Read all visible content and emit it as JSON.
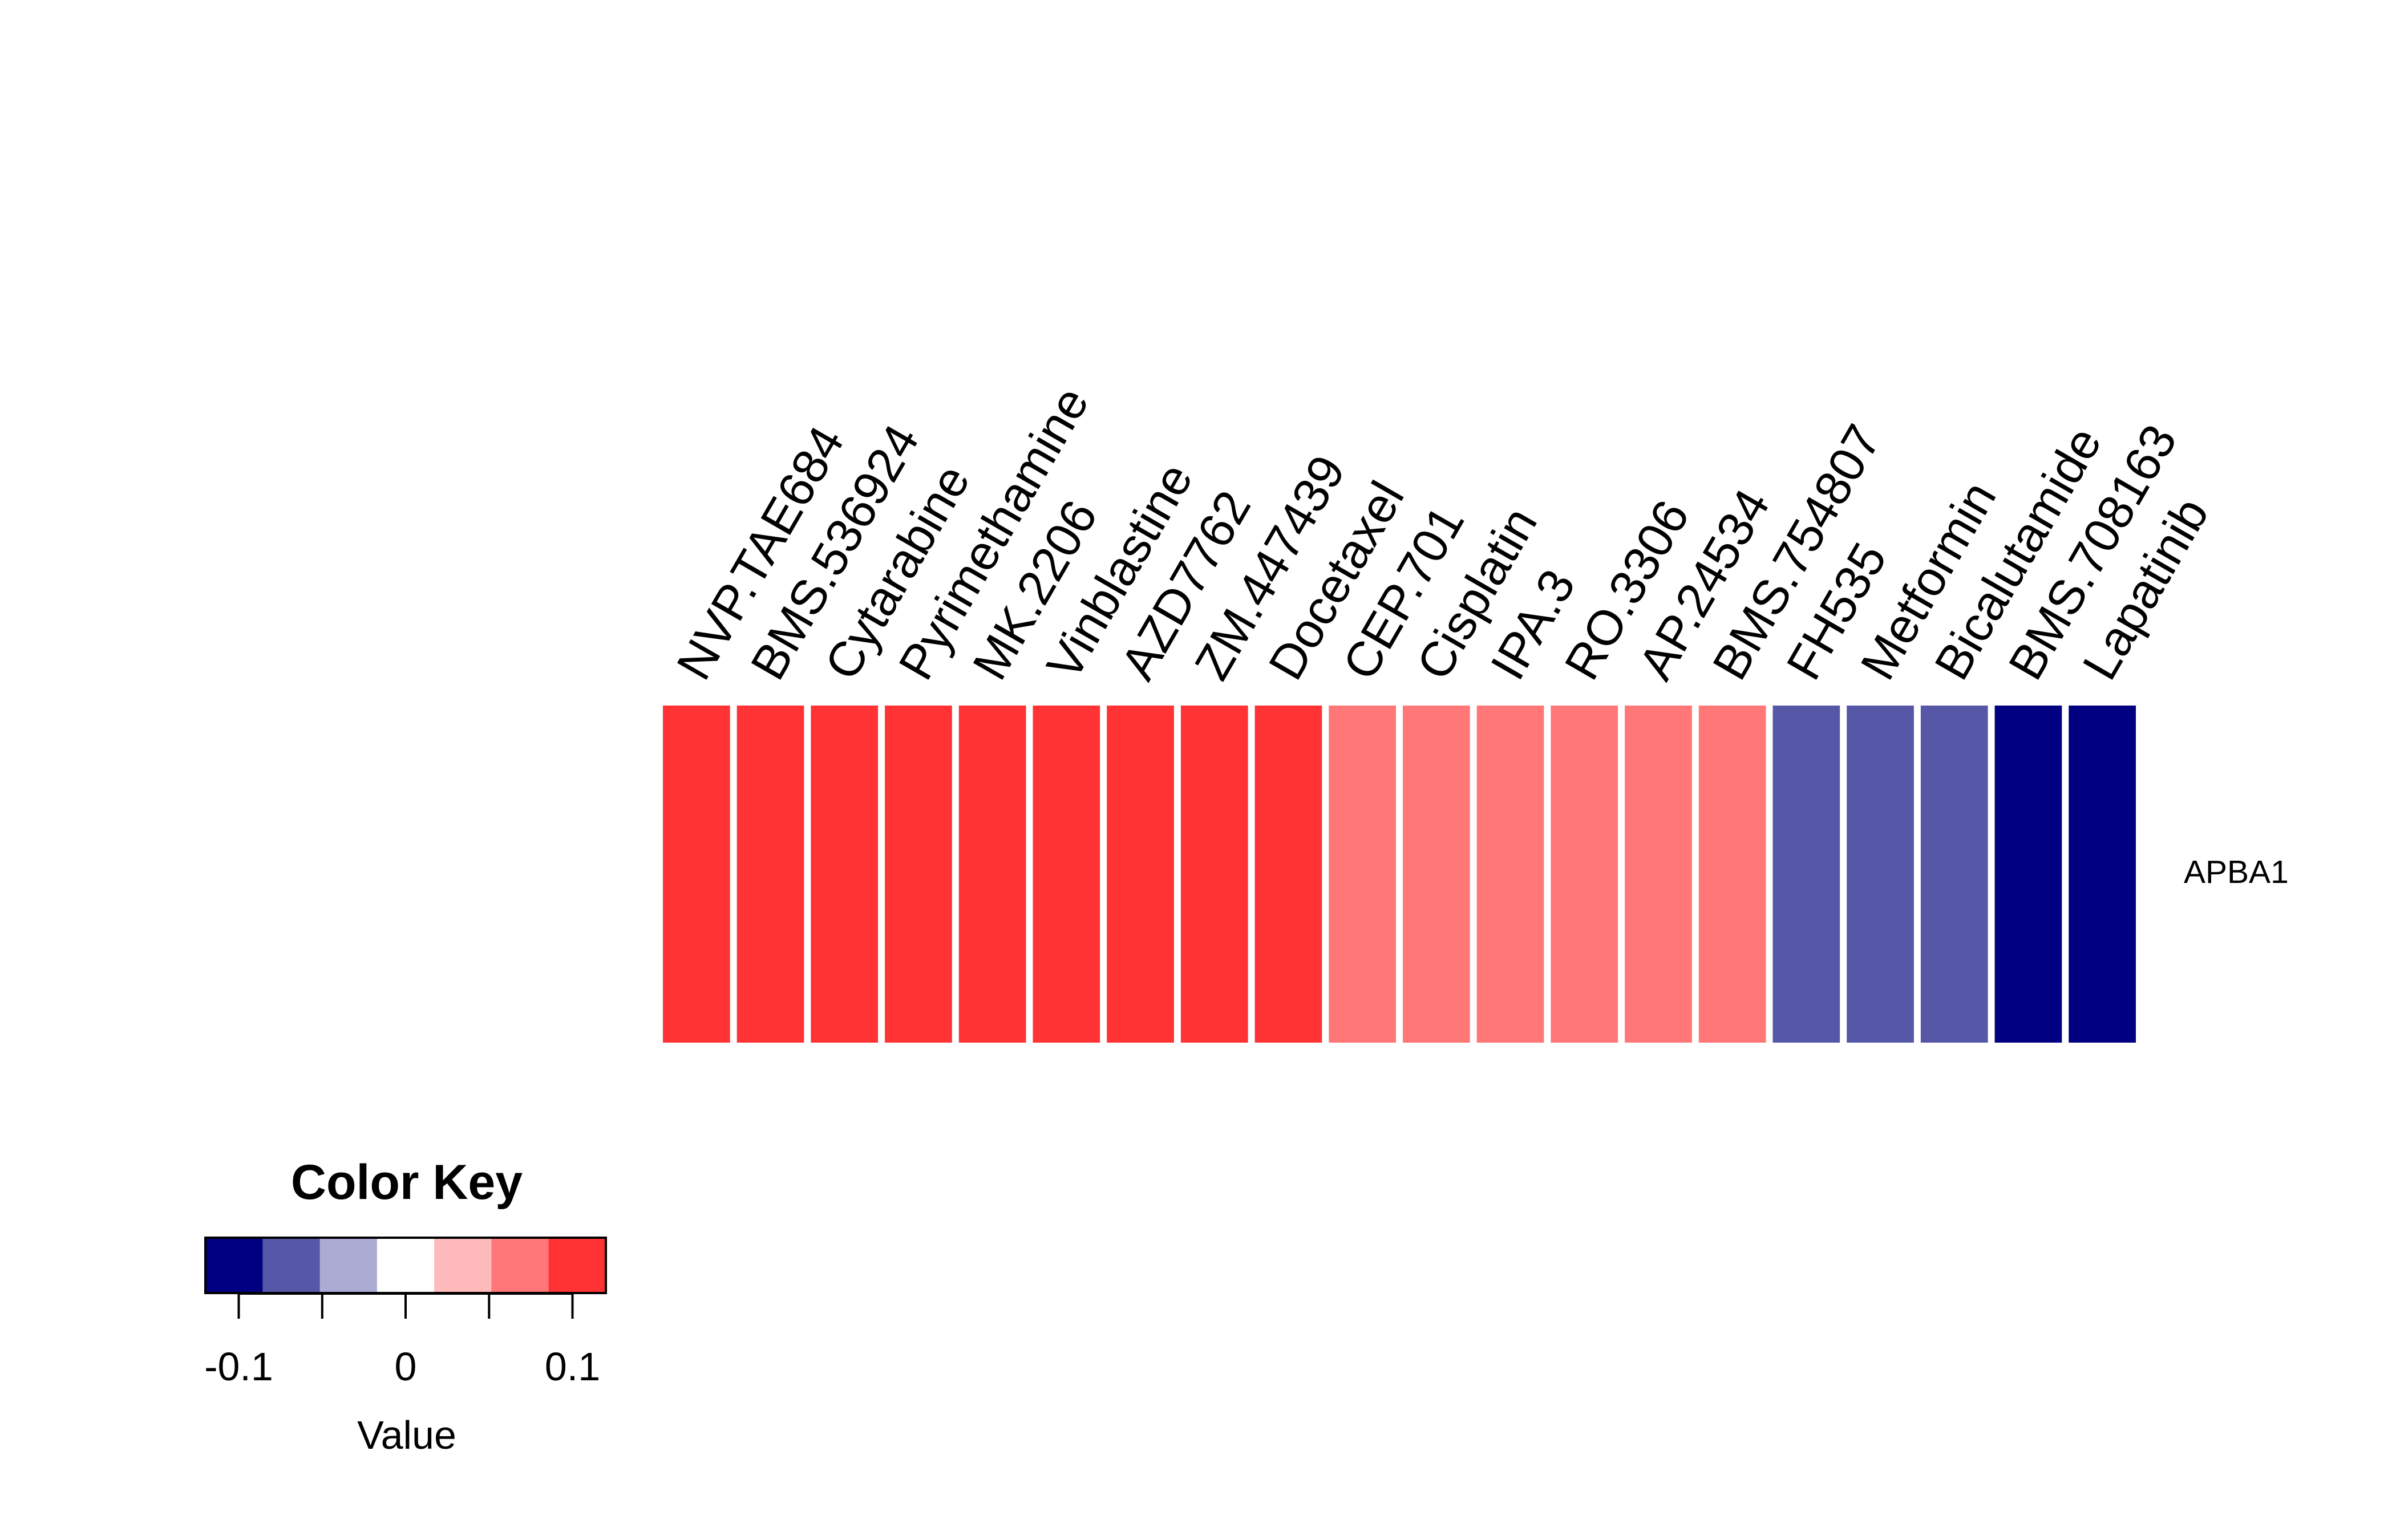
{
  "chart_data": {
    "type": "heatmap",
    "title": "",
    "row_labels": [
      "APBA1"
    ],
    "column_labels": [
      "NVP.TAE684",
      "BMS.536924",
      "Cytarabine",
      "Pyrimethamine",
      "MK.2206",
      "Vinblastine",
      "AZD7762",
      "ZM.447439",
      "Docetaxel",
      "CEP.701",
      "Cisplatin",
      "IPA.3",
      "RO.3306",
      "AP.24534",
      "BMS.754807",
      "FH535",
      "Metformin",
      "Bicalutamide",
      "BMS.708163",
      "Lapatinib"
    ],
    "values": [
      [
        0.1,
        0.1,
        0.1,
        0.1,
        0.1,
        0.1,
        0.1,
        0.1,
        0.1,
        0.06,
        0.06,
        0.06,
        0.06,
        0.06,
        0.06,
        -0.06,
        -0.06,
        -0.06,
        -0.1,
        -0.1
      ]
    ],
    "color_key": {
      "title": "Color Key",
      "xlabel": "Value",
      "range": [
        -0.12,
        0.12
      ],
      "breaks": [
        -0.12,
        -0.085714,
        -0.051429,
        -0.017143,
        0.017143,
        0.051429,
        0.085714,
        0.12
      ],
      "colors": [
        "#000080",
        "#5757A8",
        "#ABABD4",
        "#FFFFFF",
        "#FFBBBB",
        "#FF7777",
        "#FF3333"
      ],
      "ticks": [
        -0.1,
        -0.05,
        0,
        0.05,
        0.1
      ],
      "tick_labels": [
        "-0.1",
        "",
        "0",
        "",
        "0.1"
      ]
    }
  }
}
